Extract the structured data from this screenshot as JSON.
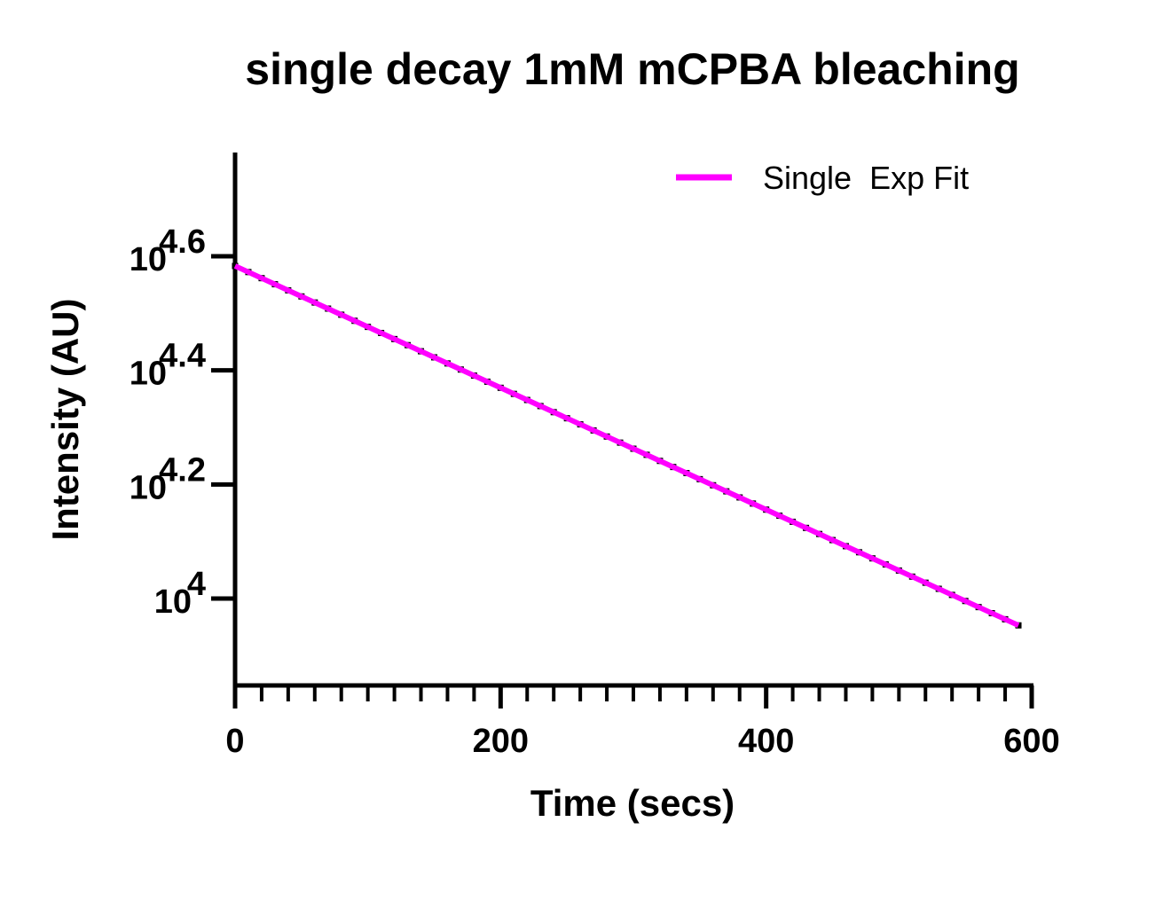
{
  "chart_data": {
    "type": "scatter",
    "title": "single decay 1mM mCPBA bleaching",
    "xlabel": "Time (secs)",
    "ylabel": "Intensity (AU)",
    "xlim": [
      0,
      600
    ],
    "x_ticks": [
      0,
      200,
      400,
      600
    ],
    "x_minor_tick_step": 20,
    "y_scale": "log10",
    "y_exponent_lim": [
      3.85,
      4.78
    ],
    "y_ticks": [
      {
        "base": "10",
        "exponent": "4.6",
        "log10_value": 4.6
      },
      {
        "base": "10",
        "exponent": "4.4",
        "log10_value": 4.4
      },
      {
        "base": "10",
        "exponent": "4.2",
        "log10_value": 4.2
      },
      {
        "base": "10",
        "exponent": "4",
        "log10_value": 4.0
      }
    ],
    "grid": false,
    "legend_position": "top-right",
    "series": [
      {
        "kind": "points",
        "color": "#000000",
        "x_start": 0,
        "x_end": 590,
        "x_step": 10,
        "log10_y_start": 4.583,
        "log10_y_end": 3.953
      },
      {
        "kind": "line",
        "name": "Single  Exp Fit",
        "color": "#ff00ff",
        "x": [
          0,
          590
        ],
        "log10_y": [
          4.583,
          3.953
        ]
      }
    ]
  }
}
